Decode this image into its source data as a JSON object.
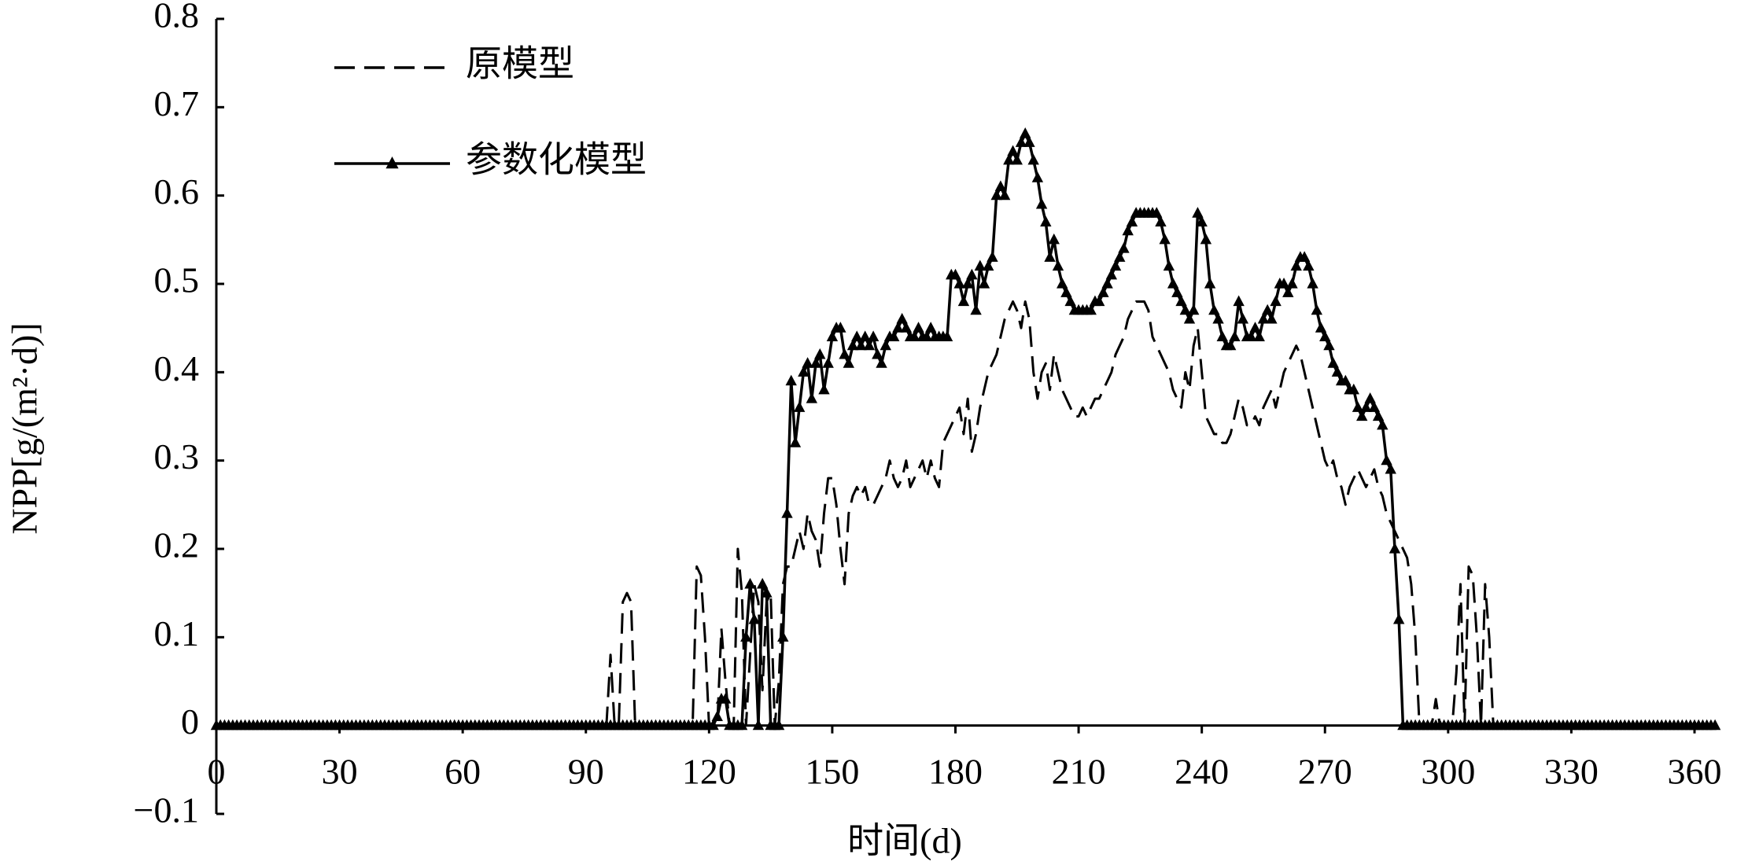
{
  "chart_data": {
    "type": "line",
    "x_label": "时间(d)",
    "y_label": "NPP[g/(m²·d)]",
    "xlim": [
      0,
      365
    ],
    "xticks": [
      0,
      30,
      60,
      90,
      120,
      150,
      180,
      210,
      240,
      270,
      300,
      330,
      360
    ],
    "ylim": [
      -0.1,
      0.8
    ],
    "yticks": [
      {
        "value": -0.1,
        "label": "−0.1"
      },
      0,
      0.1,
      0.2,
      0.3,
      0.4,
      0.5,
      0.6,
      0.7,
      0.8
    ],
    "grid": false,
    "legend": "upper left",
    "x": [
      0,
      1,
      2,
      3,
      4,
      5,
      6,
      7,
      8,
      9,
      10,
      11,
      12,
      13,
      14,
      15,
      16,
      17,
      18,
      19,
      20,
      21,
      22,
      23,
      24,
      25,
      26,
      27,
      28,
      29,
      30,
      31,
      32,
      33,
      34,
      35,
      36,
      37,
      38,
      39,
      40,
      41,
      42,
      43,
      44,
      45,
      46,
      47,
      48,
      49,
      50,
      51,
      52,
      53,
      54,
      55,
      56,
      57,
      58,
      59,
      60,
      61,
      62,
      63,
      64,
      65,
      66,
      67,
      68,
      69,
      70,
      71,
      72,
      73,
      74,
      75,
      76,
      77,
      78,
      79,
      80,
      81,
      82,
      83,
      84,
      85,
      86,
      87,
      88,
      89,
      90,
      91,
      92,
      93,
      94,
      95,
      96,
      97,
      98,
      99,
      100,
      101,
      102,
      103,
      104,
      105,
      106,
      107,
      108,
      109,
      110,
      111,
      112,
      113,
      114,
      115,
      116,
      117,
      118,
      119,
      120,
      121,
      122,
      123,
      124,
      125,
      126,
      127,
      128,
      129,
      130,
      131,
      132,
      133,
      134,
      135,
      136,
      137,
      138,
      139,
      140,
      141,
      142,
      143,
      144,
      145,
      146,
      147,
      148,
      149,
      150,
      151,
      152,
      153,
      154,
      155,
      156,
      157,
      158,
      159,
      160,
      161,
      162,
      163,
      164,
      165,
      166,
      167,
      168,
      169,
      170,
      171,
      172,
      173,
      174,
      175,
      176,
      177,
      178,
      179,
      180,
      181,
      182,
      183,
      184,
      185,
      186,
      187,
      188,
      189,
      190,
      191,
      192,
      193,
      194,
      195,
      196,
      197,
      198,
      199,
      200,
      201,
      202,
      203,
      204,
      205,
      206,
      207,
      208,
      209,
      210,
      211,
      212,
      213,
      214,
      215,
      216,
      217,
      218,
      219,
      220,
      221,
      222,
      223,
      224,
      225,
      226,
      227,
      228,
      229,
      230,
      231,
      232,
      233,
      234,
      235,
      236,
      237,
      238,
      239,
      240,
      241,
      242,
      243,
      244,
      245,
      246,
      247,
      248,
      249,
      250,
      251,
      252,
      253,
      254,
      255,
      256,
      257,
      258,
      259,
      260,
      261,
      262,
      263,
      264,
      265,
      266,
      267,
      268,
      269,
      270,
      271,
      272,
      273,
      274,
      275,
      276,
      277,
      278,
      279,
      280,
      281,
      282,
      283,
      284,
      285,
      286,
      287,
      288,
      289,
      290,
      291,
      292,
      293,
      294,
      295,
      296,
      297,
      298,
      299,
      300,
      301,
      302,
      303,
      304,
      305,
      306,
      307,
      308,
      309,
      310,
      311,
      312,
      313,
      314,
      315,
      316,
      317,
      318,
      319,
      320,
      321,
      322,
      323,
      324,
      325,
      326,
      327,
      328,
      329,
      330,
      331,
      332,
      333,
      334,
      335,
      336,
      337,
      338,
      339,
      340,
      341,
      342,
      343,
      344,
      345,
      346,
      347,
      348,
      349,
      350,
      351,
      352,
      353,
      354,
      355,
      356,
      357,
      358,
      359,
      360,
      361,
      362,
      363,
      364,
      365
    ],
    "series": [
      {
        "name": "原模型",
        "color": "#000000",
        "dashed": true,
        "marker": "none",
        "values": [
          0,
          0,
          0,
          0,
          0,
          0,
          0,
          0,
          0,
          0,
          0,
          0,
          0,
          0,
          0,
          0,
          0,
          0,
          0,
          0,
          0,
          0,
          0,
          0,
          0,
          0,
          0,
          0,
          0,
          0,
          0,
          0,
          0,
          0,
          0,
          0,
          0,
          0,
          0,
          0,
          0,
          0,
          0,
          0,
          0,
          0,
          0,
          0,
          0,
          0,
          0,
          0,
          0,
          0,
          0,
          0,
          0,
          0,
          0,
          0,
          0,
          0,
          0,
          0,
          0,
          0,
          0,
          0,
          0,
          0,
          0,
          0,
          0,
          0,
          0,
          0,
          0,
          0,
          0,
          0,
          0,
          0,
          0,
          0,
          0,
          0,
          0,
          0,
          0,
          0,
          0,
          0,
          0,
          0,
          0,
          0,
          0.08,
          0,
          0,
          0.14,
          0.15,
          0.14,
          0,
          0,
          0,
          0,
          0,
          0,
          0,
          0,
          0,
          0,
          0,
          0,
          0,
          0,
          0,
          0.18,
          0.17,
          0.1,
          0,
          0,
          0,
          0.11,
          0.05,
          0,
          0,
          0.2,
          0.15,
          0,
          0.08,
          0.16,
          0.14,
          0.04,
          0.14,
          0.15,
          0,
          0.05,
          0.16,
          0.18,
          0.18,
          0.2,
          0.22,
          0.2,
          0.24,
          0.22,
          0.21,
          0.18,
          0.24,
          0.28,
          0.28,
          0.25,
          0.2,
          0.16,
          0.24,
          0.26,
          0.27,
          0.26,
          0.27,
          0.25,
          0.25,
          0.26,
          0.27,
          0.28,
          0.3,
          0.28,
          0.27,
          0.28,
          0.3,
          0.27,
          0.28,
          0.29,
          0.3,
          0.28,
          0.3,
          0.28,
          0.27,
          0.32,
          0.33,
          0.34,
          0.35,
          0.36,
          0.33,
          0.37,
          0.31,
          0.33,
          0.36,
          0.38,
          0.4,
          0.41,
          0.42,
          0.44,
          0.46,
          0.47,
          0.48,
          0.47,
          0.45,
          0.48,
          0.46,
          0.4,
          0.37,
          0.4,
          0.41,
          0.38,
          0.42,
          0.4,
          0.38,
          0.37,
          0.36,
          0.35,
          0.35,
          0.36,
          0.35,
          0.36,
          0.37,
          0.37,
          0.38,
          0.39,
          0.4,
          0.42,
          0.43,
          0.44,
          0.46,
          0.47,
          0.48,
          0.48,
          0.48,
          0.47,
          0.44,
          0.43,
          0.42,
          0.41,
          0.4,
          0.38,
          0.37,
          0.36,
          0.4,
          0.38,
          0.43,
          0.45,
          0.4,
          0.35,
          0.34,
          0.33,
          0.33,
          0.32,
          0.32,
          0.33,
          0.35,
          0.37,
          0.36,
          0.34,
          0.34,
          0.35,
          0.34,
          0.36,
          0.37,
          0.38,
          0.36,
          0.38,
          0.4,
          0.41,
          0.42,
          0.43,
          0.42,
          0.4,
          0.38,
          0.36,
          0.34,
          0.32,
          0.3,
          0.29,
          0.3,
          0.28,
          0.27,
          0.25,
          0.27,
          0.28,
          0.29,
          0.28,
          0.27,
          0.28,
          0.29,
          0.27,
          0.26,
          0.24,
          0.23,
          0.22,
          0.21,
          0.2,
          0.19,
          0.16,
          0.1,
          0,
          0,
          0,
          0,
          0.03,
          0,
          0,
          0,
          0,
          0.06,
          0.16,
          0,
          0.18,
          0.17,
          0.1,
          0,
          0.16,
          0.1,
          0,
          0,
          0,
          0,
          0,
          0,
          0,
          0,
          0,
          0,
          0,
          0,
          0,
          0,
          0,
          0,
          0,
          0,
          0,
          0,
          0,
          0,
          0,
          0,
          0,
          0,
          0,
          0,
          0,
          0,
          0,
          0,
          0,
          0,
          0,
          0,
          0,
          0,
          0,
          0,
          0,
          0,
          0,
          0,
          0,
          0,
          0,
          0,
          0,
          0,
          0,
          0,
          0,
          0,
          0
        ]
      },
      {
        "name": "参数化模型",
        "color": "#000000",
        "dashed": false,
        "marker": "triangle",
        "values": [
          0,
          0,
          0,
          0,
          0,
          0,
          0,
          0,
          0,
          0,
          0,
          0,
          0,
          0,
          0,
          0,
          0,
          0,
          0,
          0,
          0,
          0,
          0,
          0,
          0,
          0,
          0,
          0,
          0,
          0,
          0,
          0,
          0,
          0,
          0,
          0,
          0,
          0,
          0,
          0,
          0,
          0,
          0,
          0,
          0,
          0,
          0,
          0,
          0,
          0,
          0,
          0,
          0,
          0,
          0,
          0,
          0,
          0,
          0,
          0,
          0,
          0,
          0,
          0,
          0,
          0,
          0,
          0,
          0,
          0,
          0,
          0,
          0,
          0,
          0,
          0,
          0,
          0,
          0,
          0,
          0,
          0,
          0,
          0,
          0,
          0,
          0,
          0,
          0,
          0,
          0,
          0,
          0,
          0,
          0,
          0,
          0,
          0,
          0,
          0,
          0,
          0,
          0,
          0,
          0,
          0,
          0,
          0,
          0,
          0,
          0,
          0,
          0,
          0,
          0,
          0,
          0,
          0,
          0,
          0,
          0,
          0,
          0.01,
          0.03,
          0.03,
          0,
          0,
          0,
          0,
          0.1,
          0.16,
          0.12,
          0,
          0.16,
          0.15,
          0,
          0,
          0,
          0.1,
          0.24,
          0.39,
          0.32,
          0.36,
          0.4,
          0.41,
          0.37,
          0.41,
          0.42,
          0.38,
          0.41,
          0.44,
          0.45,
          0.45,
          0.42,
          0.41,
          0.43,
          0.44,
          0.43,
          0.44,
          0.43,
          0.44,
          0.42,
          0.41,
          0.43,
          0.44,
          0.44,
          0.45,
          0.46,
          0.45,
          0.44,
          0.44,
          0.45,
          0.44,
          0.44,
          0.45,
          0.44,
          0.44,
          0.44,
          0.44,
          0.51,
          0.51,
          0.5,
          0.48,
          0.5,
          0.51,
          0.47,
          0.52,
          0.5,
          0.52,
          0.53,
          0.6,
          0.61,
          0.6,
          0.64,
          0.65,
          0.64,
          0.66,
          0.67,
          0.66,
          0.64,
          0.62,
          0.59,
          0.57,
          0.53,
          0.55,
          0.52,
          0.5,
          0.49,
          0.48,
          0.47,
          0.47,
          0.47,
          0.47,
          0.47,
          0.48,
          0.48,
          0.49,
          0.5,
          0.51,
          0.52,
          0.53,
          0.54,
          0.56,
          0.57,
          0.58,
          0.58,
          0.58,
          0.58,
          0.58,
          0.58,
          0.57,
          0.55,
          0.52,
          0.5,
          0.49,
          0.48,
          0.47,
          0.46,
          0.47,
          0.58,
          0.57,
          0.55,
          0.5,
          0.47,
          0.46,
          0.44,
          0.43,
          0.43,
          0.44,
          0.48,
          0.46,
          0.44,
          0.44,
          0.45,
          0.44,
          0.46,
          0.47,
          0.46,
          0.48,
          0.5,
          0.5,
          0.49,
          0.5,
          0.52,
          0.53,
          0.53,
          0.52,
          0.5,
          0.47,
          0.45,
          0.44,
          0.43,
          0.41,
          0.4,
          0.39,
          0.39,
          0.38,
          0.38,
          0.36,
          0.35,
          0.36,
          0.37,
          0.36,
          0.35,
          0.34,
          0.3,
          0.29,
          0.2,
          0.12,
          0,
          0,
          0,
          0,
          0,
          0,
          0,
          0,
          0,
          0,
          0,
          0,
          0,
          0,
          0,
          0,
          0,
          0,
          0,
          0,
          0,
          0,
          0,
          0,
          0,
          0,
          0,
          0,
          0,
          0,
          0,
          0,
          0,
          0,
          0,
          0,
          0,
          0,
          0,
          0,
          0,
          0,
          0,
          0,
          0,
          0,
          0,
          0,
          0,
          0,
          0,
          0,
          0,
          0,
          0,
          0,
          0,
          0,
          0,
          0,
          0,
          0,
          0,
          0,
          0,
          0,
          0,
          0,
          0,
          0,
          0,
          0,
          0,
          0,
          0,
          0,
          0
        ]
      }
    ]
  }
}
